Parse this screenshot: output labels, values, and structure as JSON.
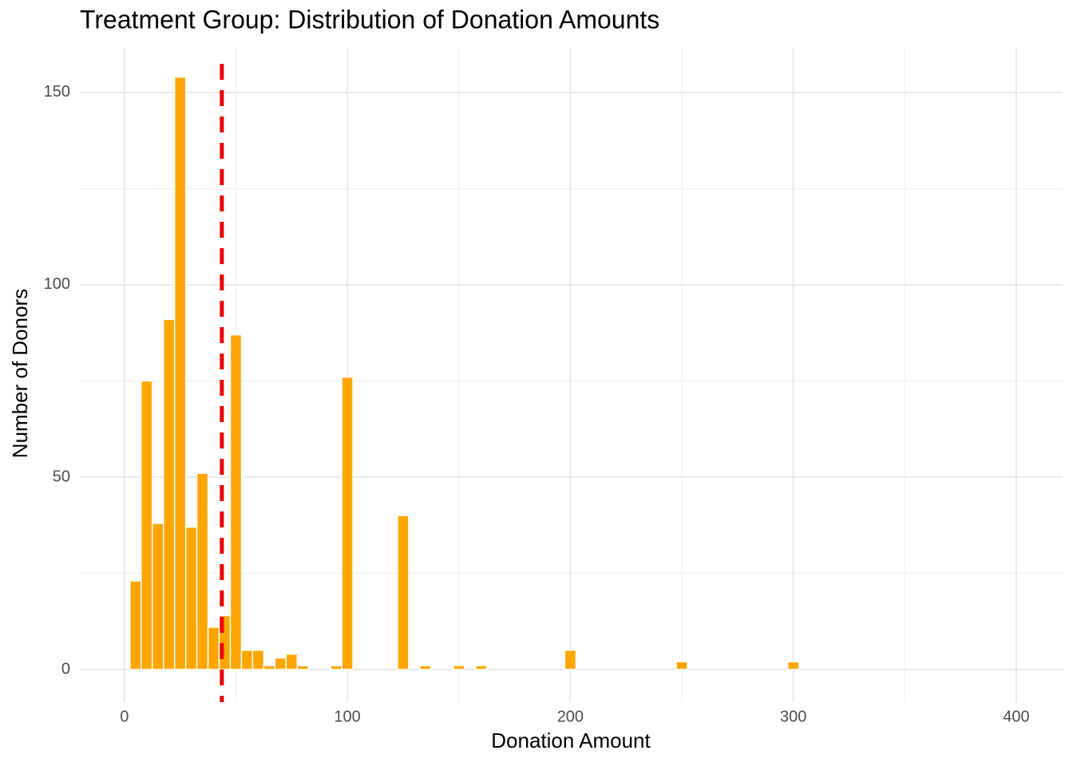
{
  "chart_data": {
    "type": "histogram",
    "title": "Treatment Group: Distribution of Donation Amounts",
    "x_label": "Donation Amount",
    "y_label": "Number of Donors",
    "bins": [
      2.5,
      7.5,
      12.5,
      17.5,
      22.5,
      27.5,
      32.5,
      37.5,
      42.5,
      47.5,
      52.5,
      57.5,
      62.5,
      67.5,
      72.5,
      77.5,
      82.5,
      87.5,
      92.5,
      97.5,
      102.5,
      107.5,
      112.5,
      117.5,
      122.5,
      127.5,
      132.5,
      137.5,
      142.5,
      147.5,
      152.5,
      157.5,
      162.5,
      167.5,
      172.5,
      177.5,
      182.5,
      187.5,
      192.5,
      197.5,
      202.5,
      207.5,
      212.5,
      217.5,
      222.5,
      227.5,
      232.5,
      237.5,
      242.5,
      247.5,
      252.5,
      257.5,
      262.5,
      267.5,
      272.5,
      277.5,
      282.5,
      287.5,
      292.5,
      297.5,
      302.5,
      307.5,
      312.5,
      317.5,
      322.5,
      327.5,
      332.5,
      337.5,
      342.5,
      347.5,
      352.5,
      357.5,
      362.5,
      367.5,
      372.5,
      377.5,
      382.5,
      387.5,
      392.5,
      397.5,
      402.5
    ],
    "values": [
      23,
      75,
      38,
      91,
      154,
      37,
      51,
      11,
      14,
      87,
      5,
      5,
      1,
      3,
      4,
      1,
      0,
      0,
      1,
      76,
      0,
      0,
      0,
      0,
      40,
      0,
      1,
      0,
      0,
      1,
      0,
      1,
      0,
      0,
      0,
      0,
      0,
      0,
      0,
      5,
      0,
      0,
      0,
      0,
      0,
      0,
      0,
      0,
      0,
      2,
      0,
      0,
      0,
      0,
      0,
      0,
      0,
      0,
      0,
      2,
      0,
      0,
      0,
      0,
      0,
      0,
      0,
      0,
      0,
      0,
      0,
      0,
      0,
      0,
      0,
      0,
      0,
      0,
      0,
      0
    ],
    "color": "#FFA500",
    "mean_line": {
      "value": 43.7,
      "color": "#EE0000"
    },
    "xlim": [
      -20,
      420.8
    ],
    "xticks": [
      0,
      100,
      200,
      300,
      400
    ],
    "ylim": [
      -8.5,
      161.6
    ],
    "yticks": [
      0,
      50,
      100,
      150
    ],
    "grid": true
  }
}
